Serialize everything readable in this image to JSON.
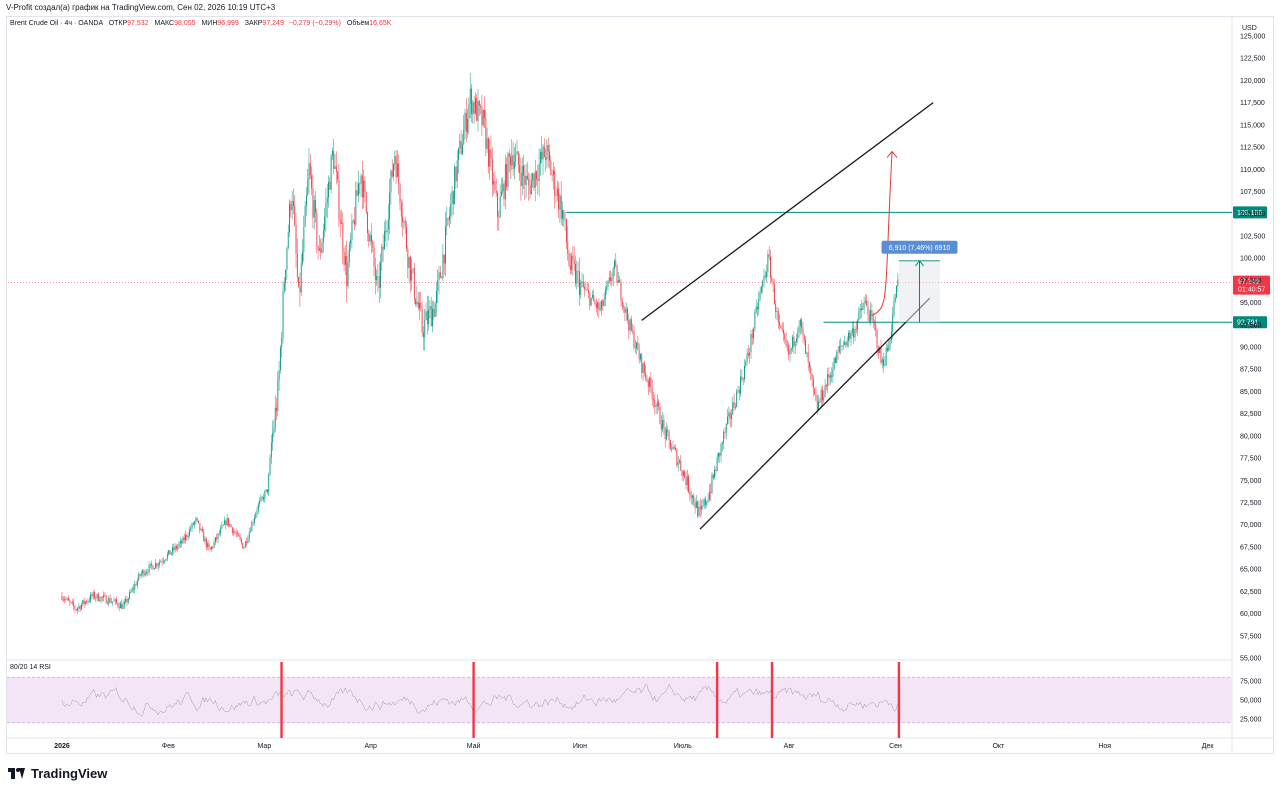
{
  "caption": "V-Profit создал(а) график на TradingView.com, Сен 02, 2026 10:19 UTC+3",
  "symbol": {
    "name": "Brent Crude Oil · 4ч · OANDA",
    "open_label": "ОТКР",
    "open": "97,532",
    "high_label": "МАКС",
    "high": "98,055",
    "low_label": "МИН",
    "low": "96,999",
    "close_label": "ЗАКР",
    "close": "97,249",
    "change": "−0,279 (−0,29%)",
    "volume_label": "Объём",
    "volume": "16,65K"
  },
  "currency": "USD",
  "rsi_label": "80/20 14 RSI",
  "logo_text": "TradingView",
  "colors": {
    "up": "#089981",
    "down": "#f23645",
    "level": "#00897b",
    "channel": "#131722",
    "arrow": "#e53935",
    "measure": "#2962ff",
    "price_tag": "#f23645",
    "rsi_line": "#9e9e9e",
    "rsi_band": "#f3e5f5",
    "rsi_spike": "#f23645"
  },
  "chart_data": {
    "type": "candlestick",
    "instrument": "Brent Crude Oil",
    "timeframe": "4ч",
    "y_axis": {
      "min": 55,
      "max": 125,
      "ticks": [
        125,
        122.5,
        120,
        117.5,
        115,
        112.5,
        110,
        107.5,
        105,
        102.5,
        100,
        97.5,
        95,
        92.5,
        90,
        87.5,
        85,
        82.5,
        80,
        77.5,
        75,
        72.5,
        70,
        67.5,
        65,
        62.5,
        60,
        57.5,
        55
      ],
      "tick_labels": [
        "125,000",
        "122,500",
        "120,000",
        "117,500",
        "115,000",
        "112,500",
        "110,000",
        "107,500",
        "105,000",
        "102,500",
        "100,000",
        "97,500",
        "95,000",
        "92,500",
        "90,000",
        "87,500",
        "85,000",
        "82,500",
        "80,000",
        "77,500",
        "75,000",
        "72,500",
        "70,000",
        "67,500",
        "65,000",
        "62,500",
        "60,000",
        "57,500",
        "55,000"
      ]
    },
    "x_axis": {
      "labels": [
        "2026",
        "Фев",
        "Мар",
        "Апр",
        "Май",
        "Июн",
        "Июль",
        "Авг",
        "Сен",
        "Окт",
        "Ноя",
        "Дек"
      ],
      "bold": [
        "2026"
      ]
    },
    "price_path": [
      {
        "d": "2026-01-01",
        "p": 62
      },
      {
        "d": "2026-01-05",
        "p": 60.5
      },
      {
        "d": "2026-01-10",
        "p": 62
      },
      {
        "d": "2026-01-15",
        "p": 61.5
      },
      {
        "d": "2026-01-19",
        "p": 60.8
      },
      {
        "d": "2026-01-24",
        "p": 64.5
      },
      {
        "d": "2026-01-30",
        "p": 66
      },
      {
        "d": "2026-02-05",
        "p": 68
      },
      {
        "d": "2026-02-09",
        "p": 70.5
      },
      {
        "d": "2026-02-13",
        "p": 67
      },
      {
        "d": "2026-02-18",
        "p": 70.5
      },
      {
        "d": "2026-02-23",
        "p": 67.5
      },
      {
        "d": "2026-02-27",
        "p": 72
      },
      {
        "d": "2026-03-02",
        "p": 74
      },
      {
        "d": "2026-03-03",
        "p": 79
      },
      {
        "d": "2026-03-05",
        "p": 85
      },
      {
        "d": "2026-03-07",
        "p": 99
      },
      {
        "d": "2026-03-09",
        "p": 108
      },
      {
        "d": "2026-03-11",
        "p": 95
      },
      {
        "d": "2026-03-14",
        "p": 110
      },
      {
        "d": "2026-03-17",
        "p": 100
      },
      {
        "d": "2026-03-21",
        "p": 112
      },
      {
        "d": "2026-03-25",
        "p": 98
      },
      {
        "d": "2026-03-29",
        "p": 110
      },
      {
        "d": "2026-04-03",
        "p": 96
      },
      {
        "d": "2026-04-08",
        "p": 112
      },
      {
        "d": "2026-04-12",
        "p": 100
      },
      {
        "d": "2026-04-16",
        "p": 92
      },
      {
        "d": "2026-04-20",
        "p": 95
      },
      {
        "d": "2026-04-26",
        "p": 110
      },
      {
        "d": "2026-04-30",
        "p": 118
      },
      {
        "d": "2026-05-04",
        "p": 115
      },
      {
        "d": "2026-05-08",
        "p": 105
      },
      {
        "d": "2026-05-12",
        "p": 112
      },
      {
        "d": "2026-05-17",
        "p": 108
      },
      {
        "d": "2026-05-22",
        "p": 112
      },
      {
        "d": "2026-05-27",
        "p": 105
      },
      {
        "d": "2026-05-29",
        "p": 99
      },
      {
        "d": "2026-06-03",
        "p": 96
      },
      {
        "d": "2026-06-07",
        "p": 94
      },
      {
        "d": "2026-06-11",
        "p": 99
      },
      {
        "d": "2026-06-15",
        "p": 93
      },
      {
        "d": "2026-06-19",
        "p": 88
      },
      {
        "d": "2026-06-22",
        "p": 85
      },
      {
        "d": "2026-06-26",
        "p": 80
      },
      {
        "d": "2026-06-30",
        "p": 77
      },
      {
        "d": "2026-07-03",
        "p": 74
      },
      {
        "d": "2026-07-06",
        "p": 71
      },
      {
        "d": "2026-07-09",
        "p": 74
      },
      {
        "d": "2026-07-13",
        "p": 80
      },
      {
        "d": "2026-07-17",
        "p": 85
      },
      {
        "d": "2026-07-20",
        "p": 89
      },
      {
        "d": "2026-07-23",
        "p": 95
      },
      {
        "d": "2026-07-26",
        "p": 100
      },
      {
        "d": "2026-07-29",
        "p": 92
      },
      {
        "d": "2026-08-01",
        "p": 89
      },
      {
        "d": "2026-08-04",
        "p": 93
      },
      {
        "d": "2026-08-07",
        "p": 87
      },
      {
        "d": "2026-08-09",
        "p": 83
      },
      {
        "d": "2026-08-12",
        "p": 86
      },
      {
        "d": "2026-08-16",
        "p": 90
      },
      {
        "d": "2026-08-20",
        "p": 92
      },
      {
        "d": "2026-08-23",
        "p": 95
      },
      {
        "d": "2026-08-26",
        "p": 92
      },
      {
        "d": "2026-08-28",
        "p": 88
      },
      {
        "d": "2026-08-30",
        "p": 90
      },
      {
        "d": "2026-09-01",
        "p": 96
      },
      {
        "d": "2026-09-02",
        "p": 97.25
      }
    ],
    "horizontal_levels": [
      {
        "value": 105.155,
        "label": "105,155",
        "from": "2026-05-28"
      },
      {
        "value": 92.791,
        "label": "92,791",
        "from": "2026-08-11"
      }
    ],
    "current_price": {
      "value": 97.249,
      "label": "97,249",
      "countdown": "01:40:57"
    },
    "channel_lines": [
      {
        "from": {
          "d": "2026-07-06",
          "p": 69.5
        },
        "to": {
          "d": "2026-09-11",
          "p": 95.5
        }
      },
      {
        "from": {
          "d": "2026-06-19",
          "p": 93
        },
        "to": {
          "d": "2026-09-12",
          "p": 117.5
        }
      }
    ],
    "projection_arrow": {
      "from": {
        "d": "2026-08-25",
        "p": 93.5
      },
      "to": {
        "d": "2026-08-31",
        "p": 112
      }
    },
    "measure": {
      "from_value": 92.791,
      "to_value": 99.7,
      "label": "6,910 (7,46%) 6910",
      "from": "2026-09-02",
      "to": "2026-09-14"
    },
    "rsi": {
      "y_ticks": [
        "75,000",
        "50,000",
        "25,000"
      ],
      "upper": 80,
      "lower": 20,
      "spike_dates": [
        "2026-03-06",
        "2026-05-01",
        "2026-07-11",
        "2026-07-27",
        "2026-09-02"
      ]
    }
  }
}
